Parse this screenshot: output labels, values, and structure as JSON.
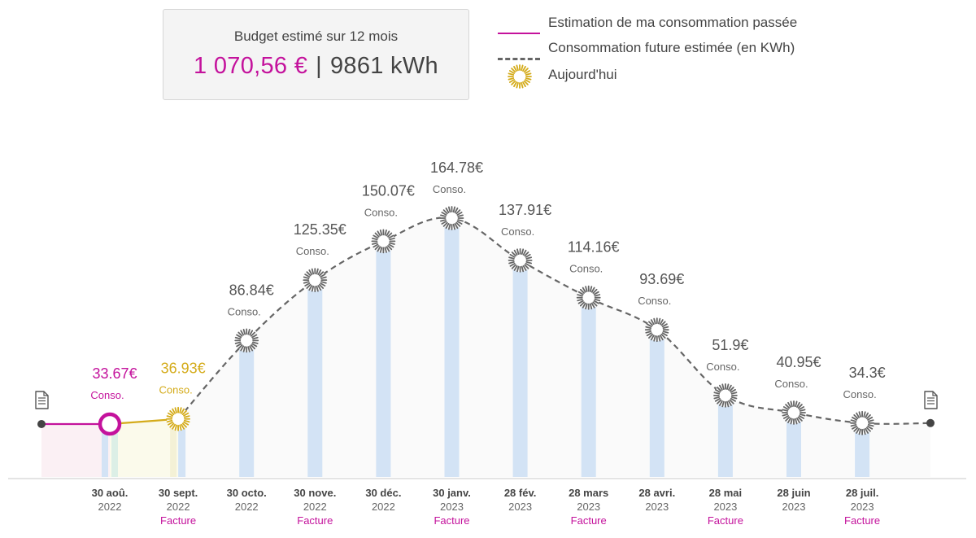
{
  "budget": {
    "title": "Budget estimé sur 12 mois",
    "amount": "1 070,56 €",
    "separator": "|",
    "energy": "9861 kWh"
  },
  "legend": {
    "past": "Estimation de ma consommation passée",
    "future": "Consommation future estimée (en KWh)",
    "today": "Aujourd'hui"
  },
  "colors": {
    "past": "#c4129c",
    "today": "#d4ab1a",
    "future": "#666666",
    "bar": "#d3e3f5",
    "facture": "#c4129c"
  },
  "chart_data": {
    "type": "line",
    "unit": "€",
    "value_caption": "Conso.",
    "facture_label": "Facture",
    "categories": [
      {
        "day": "30 aoû.",
        "year": "2022",
        "facture": ""
      },
      {
        "day": "30 sept.",
        "year": "2022",
        "facture": "Facture"
      },
      {
        "day": "30 octo.",
        "year": "2022",
        "facture": ""
      },
      {
        "day": "30 nove.",
        "year": "2022",
        "facture": "Facture"
      },
      {
        "day": "30 déc.",
        "year": "2022",
        "facture": ""
      },
      {
        "day": "30 janv.",
        "year": "2023",
        "facture": "Facture"
      },
      {
        "day": "28 fév.",
        "year": "2023",
        "facture": ""
      },
      {
        "day": "28 mars",
        "year": "2023",
        "facture": "Facture"
      },
      {
        "day": "28 avri.",
        "year": "2023",
        "facture": ""
      },
      {
        "day": "28 mai",
        "year": "2023",
        "facture": "Facture"
      },
      {
        "day": "28 juin",
        "year": "2023",
        "facture": ""
      },
      {
        "day": "28 juil.",
        "year": "2023",
        "facture": "Facture"
      }
    ],
    "values": [
      33.67,
      36.93,
      86.84,
      125.35,
      150.07,
      164.78,
      137.91,
      114.16,
      93.69,
      51.9,
      40.95,
      34.3
    ],
    "labels": [
      "33.67€",
      "36.93€",
      "86.84€",
      "125.35€",
      "150.07€",
      "164.78€",
      "137.91€",
      "114.16€",
      "93.69€",
      "51.9€",
      "40.95€",
      "34.3€"
    ],
    "status": [
      "past",
      "today",
      "future",
      "future",
      "future",
      "future",
      "future",
      "future",
      "future",
      "future",
      "future",
      "future"
    ],
    "ylim": [
      0,
      190
    ],
    "grid": false,
    "legend_position": "top-right"
  }
}
